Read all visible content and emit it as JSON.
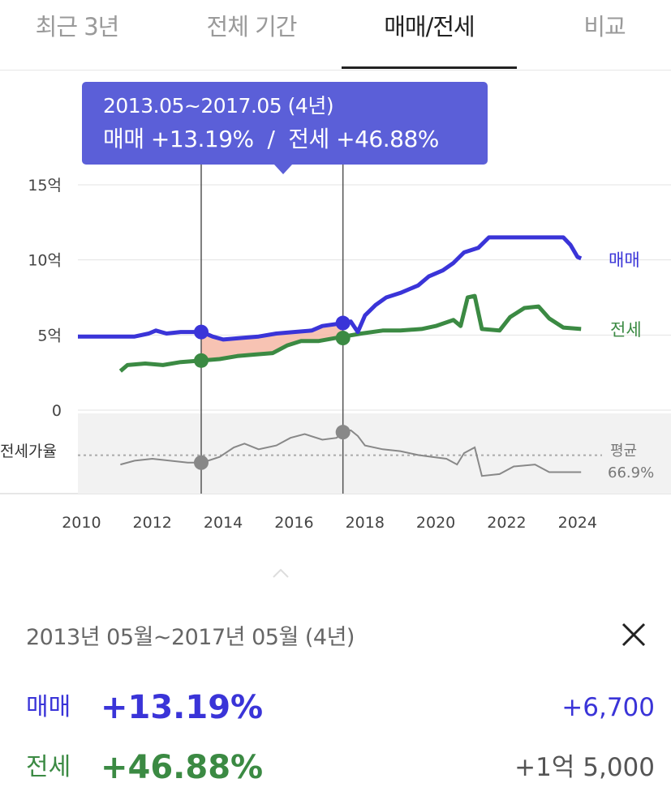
{
  "tabs": [
    {
      "label": "최근 3년",
      "active": false
    },
    {
      "label": "전체 기간",
      "active": false
    },
    {
      "label": "매매/전세",
      "active": true
    },
    {
      "label": "비교",
      "active": false
    }
  ],
  "tooltip": {
    "range": "2013.05~2017.05 (4년)",
    "sale_label": "매매 +13.19%",
    "separator": "/",
    "jeonse_label": "전세 +46.88%"
  },
  "detail": {
    "range": "2013년 05월~2017년 05월 (4년)",
    "sale": {
      "label": "매매",
      "pct": "+13.19%",
      "amount": "+6,700"
    },
    "jeonse": {
      "label": "전세",
      "pct": "+46.88%",
      "amount": "+1억 5,000"
    }
  },
  "colors": {
    "sale": "#3a34d8",
    "jeonse": "#3b8a43",
    "ratio": "#888888",
    "tooltip": "#5b5fd8"
  },
  "icons": {
    "close": "close-icon",
    "caret": "chevron-up-icon"
  },
  "chart_data": {
    "type": "line",
    "x_ticks": [
      "2010",
      "2012",
      "2014",
      "2016",
      "2018",
      "2020",
      "2022",
      "2024"
    ],
    "y_ticks": [
      "0",
      "5억",
      "10억",
      "15억"
    ],
    "ylim": [
      0,
      15
    ],
    "xlim": [
      2009.9,
      2024.6
    ],
    "series": [
      {
        "name": "매매",
        "points": [
          [
            2009.9,
            4.9
          ],
          [
            2010.5,
            4.9
          ],
          [
            2011.5,
            4.9
          ],
          [
            2011.9,
            5.1
          ],
          [
            2012.1,
            5.3
          ],
          [
            2012.4,
            5.1
          ],
          [
            2012.8,
            5.2
          ],
          [
            2013.4,
            5.2
          ],
          [
            2013.7,
            4.9
          ],
          [
            2014.0,
            4.7
          ],
          [
            2014.5,
            4.8
          ],
          [
            2015.0,
            4.9
          ],
          [
            2015.5,
            5.1
          ],
          [
            2016.0,
            5.2
          ],
          [
            2016.5,
            5.3
          ],
          [
            2016.8,
            5.6
          ],
          [
            2017.4,
            5.8
          ],
          [
            2017.6,
            5.9
          ],
          [
            2017.8,
            5.2
          ],
          [
            2018.0,
            6.3
          ],
          [
            2018.3,
            7.0
          ],
          [
            2018.6,
            7.5
          ],
          [
            2019.0,
            7.8
          ],
          [
            2019.5,
            8.3
          ],
          [
            2019.8,
            8.9
          ],
          [
            2020.2,
            9.3
          ],
          [
            2020.5,
            9.8
          ],
          [
            2020.8,
            10.5
          ],
          [
            2021.2,
            10.8
          ],
          [
            2021.5,
            11.5
          ],
          [
            2022.0,
            11.5
          ],
          [
            2022.5,
            11.5
          ],
          [
            2023.0,
            11.5
          ],
          [
            2023.6,
            11.5
          ],
          [
            2023.8,
            11.0
          ],
          [
            2024.0,
            10.2
          ],
          [
            2024.1,
            10.1
          ]
        ]
      },
      {
        "name": "전세",
        "points": [
          [
            2011.1,
            2.6
          ],
          [
            2011.3,
            3.0
          ],
          [
            2011.8,
            3.1
          ],
          [
            2012.3,
            3.0
          ],
          [
            2012.8,
            3.2
          ],
          [
            2013.4,
            3.3
          ],
          [
            2013.9,
            3.4
          ],
          [
            2014.4,
            3.6
          ],
          [
            2014.9,
            3.7
          ],
          [
            2015.4,
            3.8
          ],
          [
            2015.8,
            4.3
          ],
          [
            2016.2,
            4.6
          ],
          [
            2016.7,
            4.6
          ],
          [
            2017.4,
            4.9
          ],
          [
            2017.9,
            5.1
          ],
          [
            2018.5,
            5.3
          ],
          [
            2019.0,
            5.3
          ],
          [
            2019.6,
            5.4
          ],
          [
            2020.0,
            5.6
          ],
          [
            2020.5,
            6.0
          ],
          [
            2020.7,
            5.6
          ],
          [
            2020.9,
            7.5
          ],
          [
            2021.1,
            7.6
          ],
          [
            2021.3,
            5.4
          ],
          [
            2021.8,
            5.3
          ],
          [
            2022.1,
            6.2
          ],
          [
            2022.5,
            6.8
          ],
          [
            2022.9,
            6.9
          ],
          [
            2023.2,
            6.1
          ],
          [
            2023.6,
            5.5
          ],
          [
            2024.1,
            5.4
          ]
        ]
      },
      {
        "name": "전세가율",
        "points": [
          [
            2011.1,
            62
          ],
          [
            2011.5,
            64
          ],
          [
            2012.0,
            65
          ],
          [
            2012.5,
            64
          ],
          [
            2013.0,
            63
          ],
          [
            2013.4,
            63
          ],
          [
            2013.9,
            66
          ],
          [
            2014.3,
            71
          ],
          [
            2014.6,
            73
          ],
          [
            2015.0,
            70
          ],
          [
            2015.5,
            72
          ],
          [
            2015.9,
            76
          ],
          [
            2016.3,
            78
          ],
          [
            2016.8,
            75
          ],
          [
            2017.2,
            76
          ],
          [
            2017.4,
            79
          ],
          [
            2017.6,
            80
          ],
          [
            2017.8,
            77
          ],
          [
            2018.0,
            72
          ],
          [
            2018.5,
            70
          ],
          [
            2019.0,
            69
          ],
          [
            2019.5,
            67
          ],
          [
            2019.9,
            66
          ],
          [
            2020.3,
            65
          ],
          [
            2020.6,
            62
          ],
          [
            2020.8,
            68
          ],
          [
            2021.1,
            71
          ],
          [
            2021.3,
            56
          ],
          [
            2021.8,
            57
          ],
          [
            2022.2,
            61
          ],
          [
            2022.8,
            62
          ],
          [
            2023.2,
            58
          ],
          [
            2023.6,
            58
          ],
          [
            2024.1,
            58
          ]
        ]
      }
    ],
    "series_end_labels": [
      "매매",
      "전세"
    ],
    "ratio_label": "전세가율",
    "ratio_average_label": "평균",
    "ratio_average": "66.9%",
    "ratio_average_value": 66.9,
    "ratio_range": [
      48,
      88
    ],
    "selection": {
      "start": 2013.38,
      "end": 2017.38
    },
    "markers": {
      "sale": [
        [
          2013.38,
          5.2
        ],
        [
          2017.38,
          5.8
        ]
      ],
      "jeonse": [
        [
          2013.38,
          3.3
        ],
        [
          2017.38,
          4.8
        ]
      ],
      "ratio": [
        [
          2013.38,
          63
        ],
        [
          2017.38,
          79
        ]
      ]
    }
  }
}
